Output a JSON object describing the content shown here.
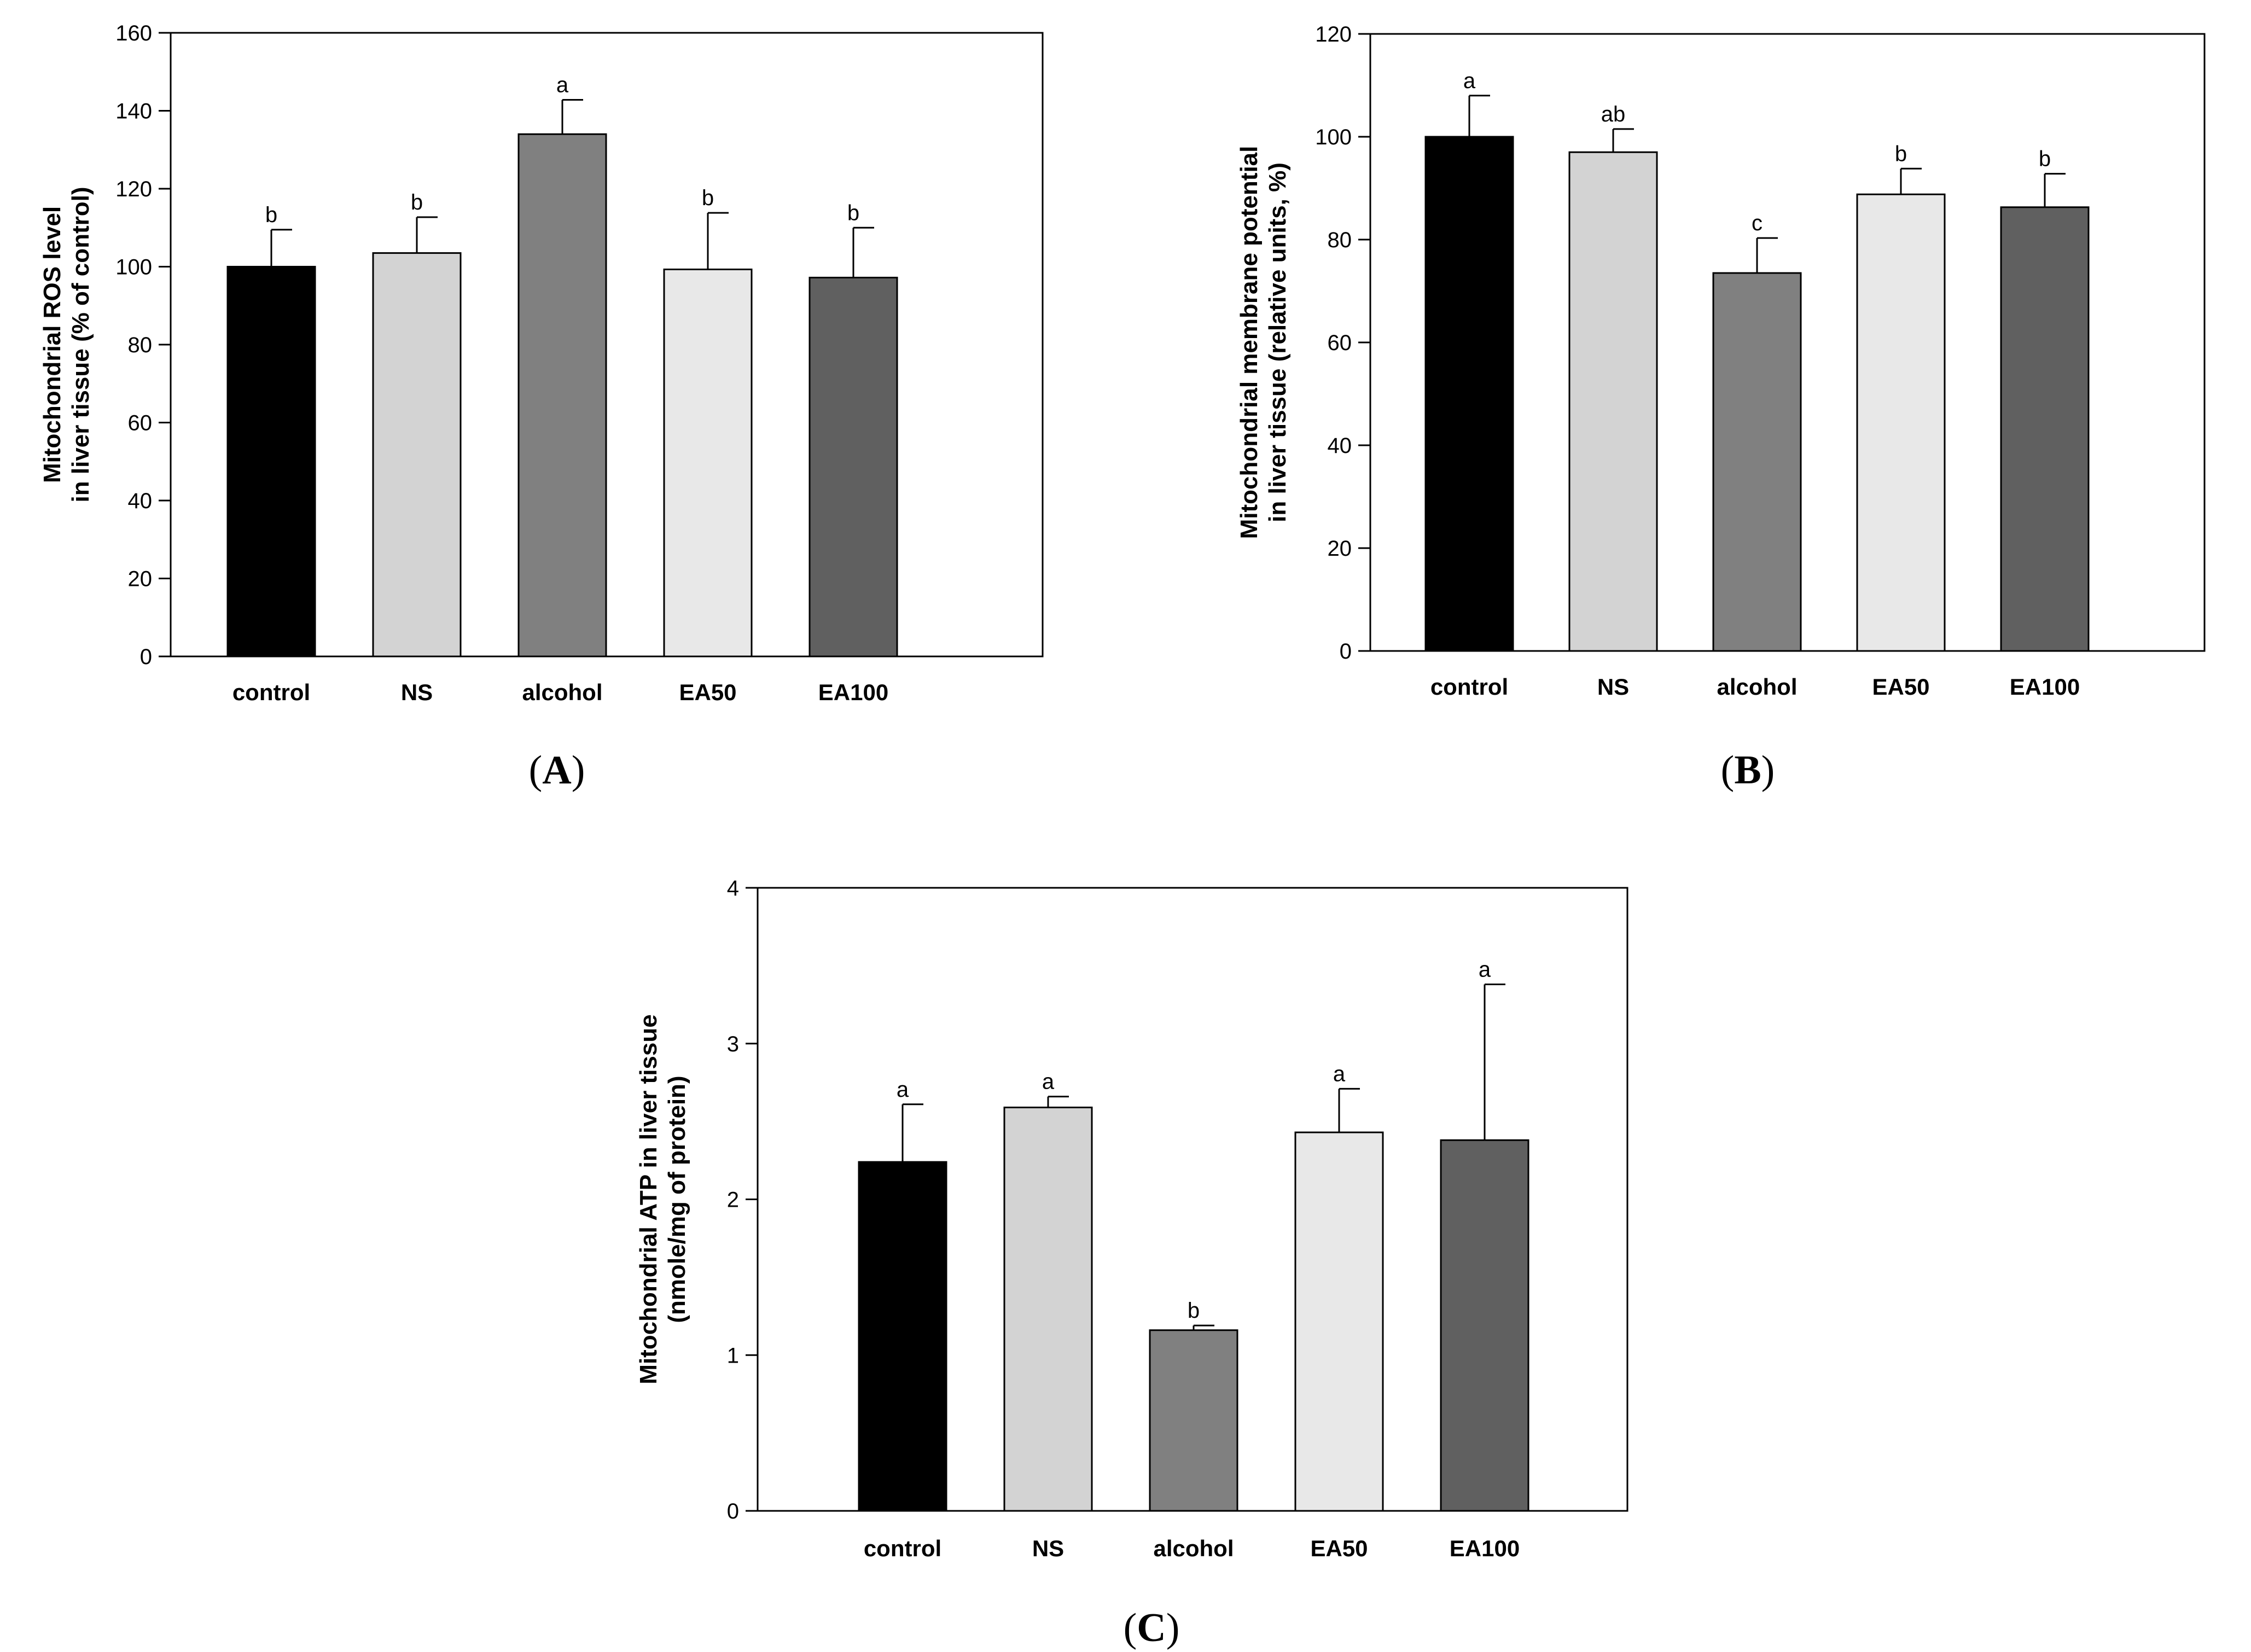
{
  "chart_data": [
    {
      "id": "A",
      "type": "bar",
      "panel_label": "A",
      "categories": [
        "control",
        "NS",
        "alcohol",
        "EA50",
        "EA100"
      ],
      "values": [
        100,
        103.5,
        134,
        99.3,
        97.2
      ],
      "errors": [
        9.5,
        9.2,
        8.8,
        14.5,
        12.8
      ],
      "significance": [
        "b",
        "b",
        "a",
        "b",
        "b"
      ],
      "colors": [
        "#000000",
        "#d3d3d3",
        "#808080",
        "#e8e8e8",
        "#606060"
      ],
      "ylabel_lines": [
        "Mitochondrial ROS level",
        "in liver tissue (% of control)"
      ],
      "ylim": [
        0,
        160
      ],
      "yticks": [
        0,
        20,
        40,
        60,
        80,
        100,
        120,
        140,
        160
      ]
    },
    {
      "id": "B",
      "type": "bar",
      "panel_label": "B",
      "categories": [
        "control",
        "NS",
        "alcohol",
        "EA50",
        "EA100"
      ],
      "values": [
        100,
        97,
        73.5,
        88.8,
        86.3
      ],
      "errors": [
        8,
        4.5,
        6.8,
        5,
        6.5
      ],
      "significance": [
        "a",
        "ab",
        "c",
        "b",
        "b"
      ],
      "colors": [
        "#000000",
        "#d3d3d3",
        "#808080",
        "#e8e8e8",
        "#606060"
      ],
      "ylabel_lines": [
        "Mitochondrial membrane potential",
        "in liver tissue (relative units, %)"
      ],
      "ylim": [
        0,
        120
      ],
      "yticks": [
        0,
        20,
        40,
        60,
        80,
        100,
        120
      ]
    },
    {
      "id": "C",
      "type": "bar",
      "panel_label": "C",
      "categories": [
        "control",
        "NS",
        "alcohol",
        "EA50",
        "EA100"
      ],
      "values": [
        2.24,
        2.59,
        1.16,
        2.43,
        2.38
      ],
      "errors": [
        0.37,
        0.07,
        0.03,
        0.28,
        1.0
      ],
      "significance": [
        "a",
        "a",
        "b",
        "a",
        "a"
      ],
      "colors": [
        "#000000",
        "#d3d3d3",
        "#808080",
        "#e8e8e8",
        "#606060"
      ],
      "ylabel_lines": [
        "Mitochondrial ATP in liver tissue",
        "(nmole/mg of protein)"
      ],
      "ylim": [
        0,
        4
      ],
      "yticks": [
        0,
        1,
        2,
        3,
        4
      ]
    }
  ]
}
